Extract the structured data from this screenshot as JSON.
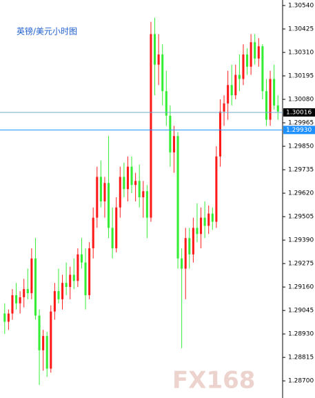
{
  "chart_data": {
    "type": "candlestick",
    "title": "英镑/美元小时图",
    "watermark": "FX168",
    "up_color": "#ff1a1a",
    "down_color": "#33ee33",
    "ylim": [
      1.28616,
      1.30567
    ],
    "yticks": [
      {
        "value": 1.3054,
        "label": "1.30540"
      },
      {
        "value": 1.30425,
        "label": "1.30425"
      },
      {
        "value": 1.3031,
        "label": "1.30310"
      },
      {
        "value": 1.30195,
        "label": "1.30195"
      },
      {
        "value": 1.3008,
        "label": "1.30080"
      },
      {
        "value": 1.29965,
        "label": "1.29965"
      },
      {
        "value": 1.2985,
        "label": "1.29850"
      },
      {
        "value": 1.29735,
        "label": "1.29735"
      },
      {
        "value": 1.2962,
        "label": "1.29620"
      },
      {
        "value": 1.29505,
        "label": "1.29505"
      },
      {
        "value": 1.2939,
        "label": "1.29390"
      },
      {
        "value": 1.29275,
        "label": "1.29275"
      },
      {
        "value": 1.2916,
        "label": "1.29160"
      },
      {
        "value": 1.29045,
        "label": "1.29045"
      },
      {
        "value": 1.2893,
        "label": "1.28930"
      },
      {
        "value": 1.28815,
        "label": "1.28815"
      },
      {
        "value": 1.287,
        "label": "1.28700"
      }
    ],
    "price_lines": [
      {
        "value": 1.30016,
        "label": "1.30016",
        "color": "#000000",
        "line_color": "#6fa8c8"
      },
      {
        "value": 1.2993,
        "label": "1.29930",
        "color": "#1e90ff",
        "line_color": "#1e90ff"
      }
    ],
    "open": [
      1.2903,
      1.2899,
      1.2903,
      1.2912,
      1.2908,
      1.2911,
      1.2915,
      1.2913,
      1.293,
      1.2902,
      1.2885,
      1.2892,
      1.2876,
      1.2904,
      1.2914,
      1.291,
      1.2918,
      1.2916,
      1.2922,
      1.2919,
      1.2932,
      1.2928,
      1.2912,
      1.2935,
      1.295,
      1.297,
      1.2958,
      1.2967,
      1.2945,
      1.2935,
      1.2955,
      1.297,
      1.2964,
      1.2975,
      1.2966,
      1.2968,
      1.296,
      1.2963,
      1.295,
      1.304,
      1.3025,
      1.303,
      1.3012,
      1.3,
      1.2982,
      1.299,
      1.293,
      1.2925,
      1.294,
      1.2932,
      1.2945,
      1.2942,
      1.295,
      1.2946,
      1.2952,
      1.2948,
      1.298,
      1.3002,
      1.3006,
      1.3015,
      1.301,
      1.302,
      1.3018,
      1.303,
      1.3024,
      1.3036,
      1.3028,
      1.3034,
      1.3012,
      1.2998,
      1.3018,
      1.3005
    ],
    "high": [
      1.2908,
      1.2905,
      1.2915,
      1.2918,
      1.2914,
      1.292,
      1.2925,
      1.2935,
      1.294,
      1.2905,
      1.2895,
      1.2894,
      1.2907,
      1.2918,
      1.2925,
      1.2922,
      1.2928,
      1.2926,
      1.293,
      1.2935,
      1.294,
      1.2935,
      1.2938,
      1.2955,
      1.2975,
      1.2978,
      1.297,
      1.299,
      1.2955,
      1.296,
      1.2975,
      1.2977,
      1.298,
      1.298,
      1.2972,
      1.2976,
      1.2968,
      1.2966,
      1.3046,
      1.3048,
      1.304,
      1.3035,
      1.3022,
      1.3005,
      1.2995,
      1.2992,
      1.2935,
      1.2945,
      1.2945,
      1.295,
      1.2957,
      1.2955,
      1.2958,
      1.2956,
      1.2955,
      1.2985,
      1.3008,
      1.301,
      1.3022,
      1.3025,
      1.3025,
      1.303,
      1.3035,
      1.3033,
      1.304,
      1.304,
      1.3038,
      1.3035,
      1.3018,
      1.3022,
      1.3025,
      1.301
    ],
    "low": [
      1.2893,
      1.2895,
      1.29,
      1.2905,
      1.2903,
      1.2906,
      1.291,
      1.291,
      1.29,
      1.2868,
      1.2875,
      1.2872,
      1.2874,
      1.29,
      1.2908,
      1.2905,
      1.2912,
      1.291,
      1.2915,
      1.2916,
      1.2925,
      1.2905,
      1.291,
      1.293,
      1.2945,
      1.2955,
      1.295,
      1.294,
      1.293,
      1.2933,
      1.295,
      1.296,
      1.2958,
      1.2962,
      1.2958,
      1.2955,
      1.295,
      1.294,
      1.2948,
      1.301,
      1.3015,
      1.3005,
      1.2995,
      1.2975,
      1.2972,
      1.2925,
      1.2886,
      1.291,
      1.2925,
      1.2928,
      1.2938,
      1.2935,
      1.294,
      1.2942,
      1.2944,
      1.2945,
      1.2975,
      1.2995,
      1.2998,
      1.3005,
      1.3008,
      1.3012,
      1.3015,
      1.302,
      1.302,
      1.3025,
      1.3024,
      1.3008,
      1.2995,
      1.2995,
      1.3003,
      1.2998
    ],
    "close": [
      1.2899,
      1.2903,
      1.2912,
      1.2908,
      1.2911,
      1.2915,
      1.2913,
      1.293,
      1.2902,
      1.2885,
      1.2892,
      1.2876,
      1.2904,
      1.2914,
      1.291,
      1.2918,
      1.2916,
      1.2922,
      1.2919,
      1.2932,
      1.2928,
      1.2912,
      1.2935,
      1.295,
      1.297,
      1.2958,
      1.2967,
      1.2945,
      1.2935,
      1.2955,
      1.297,
      1.2964,
      1.2975,
      1.2966,
      1.2968,
      1.296,
      1.2963,
      1.295,
      1.304,
      1.3025,
      1.303,
      1.3012,
      1.3,
      1.2982,
      1.299,
      1.293,
      1.2925,
      1.294,
      1.2932,
      1.2945,
      1.2942,
      1.295,
      1.2946,
      1.2952,
      1.2948,
      1.298,
      1.3002,
      1.3006,
      1.3015,
      1.301,
      1.302,
      1.3018,
      1.303,
      1.3024,
      1.3036,
      1.3028,
      1.3034,
      1.3012,
      1.2998,
      1.3018,
      1.3005,
      1.3002
    ]
  }
}
